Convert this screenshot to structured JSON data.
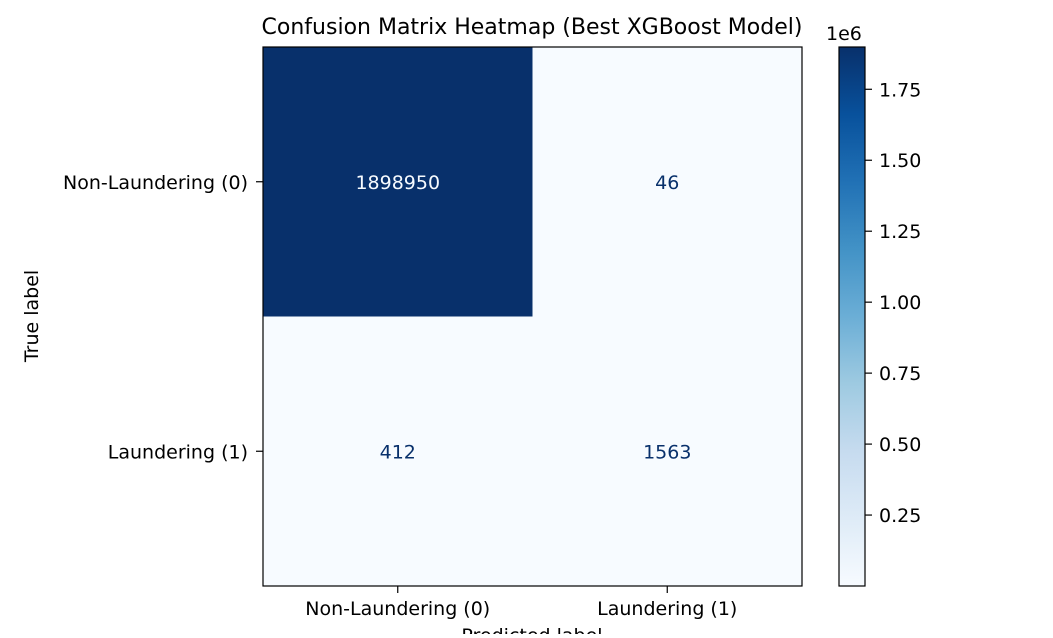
{
  "chart_data": {
    "type": "heatmap",
    "title": "Confusion Matrix Heatmap (Best XGBoost Model)",
    "xlabel": "Predicted label",
    "ylabel": "True label",
    "x_categories": [
      "Non-Laundering (0)",
      "Laundering (1)"
    ],
    "y_categories": [
      "Non-Laundering (0)",
      "Laundering (1)"
    ],
    "matrix": [
      [
        1898950,
        46
      ],
      [
        412,
        1563
      ]
    ],
    "cell_labels": [
      [
        "1898950",
        "46"
      ],
      [
        "412",
        "1563"
      ]
    ],
    "colormap": "Blues",
    "colorbar": {
      "offset_label": "1e6",
      "scale": 1000000,
      "ticks": [
        0.25,
        0.5,
        0.75,
        1.0,
        1.25,
        1.5,
        1.75
      ],
      "tick_labels": [
        "0.25",
        "0.50",
        "0.75",
        "1.00",
        "1.25",
        "1.50",
        "1.75"
      ],
      "vmin": 46,
      "vmax": 1898950
    },
    "colors": {
      "low": "#f7fbff",
      "high": "#08306b",
      "dark_text": "#08306b",
      "light_text": "#f7fbff"
    }
  }
}
